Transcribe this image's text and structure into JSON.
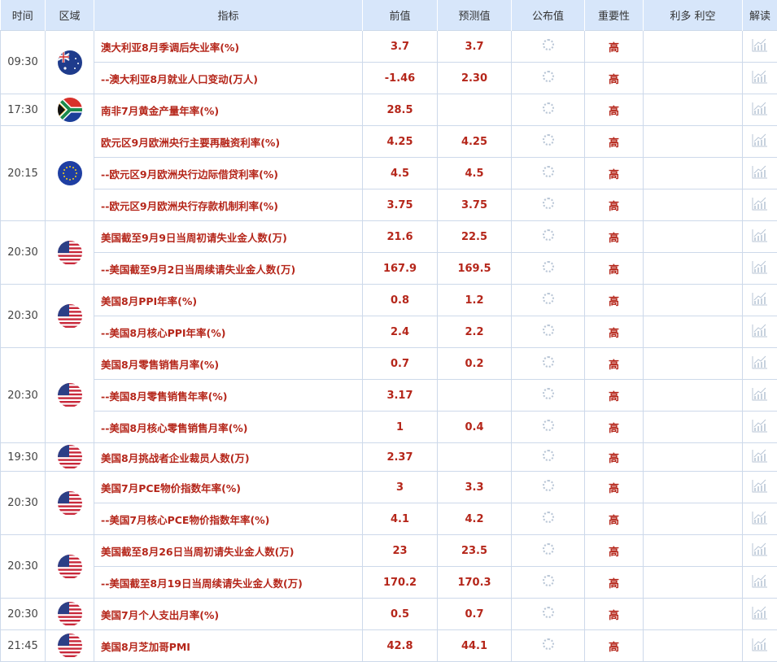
{
  "header": [
    "时间",
    "区域",
    "指标",
    "前值",
    "预测值",
    "公布值",
    "重要性",
    "利多 利空",
    "解读"
  ],
  "colors": {
    "header_bg": "#d7e6fa",
    "text_red": "#b5261a",
    "border": "#cdd9ea"
  },
  "groups": [
    {
      "time": "09:30",
      "flag": "australia",
      "rows": [
        {
          "indicator": "澳大利亚8月季调后失业率(%)",
          "prev": "3.7",
          "forecast": "3.7",
          "actual": "",
          "importance": "高"
        },
        {
          "indicator": "--澳大利亚8月就业人口变动(万人)",
          "prev": "-1.46",
          "forecast": "2.30",
          "actual": "",
          "importance": "高"
        }
      ]
    },
    {
      "time": "17:30",
      "flag": "south-africa",
      "rows": [
        {
          "indicator": "南非7月黄金产量年率(%)",
          "prev": "28.5",
          "forecast": "",
          "actual": "",
          "importance": "高"
        }
      ]
    },
    {
      "time": "20:15",
      "flag": "eurozone",
      "rows": [
        {
          "indicator": "欧元区9月欧洲央行主要再融资利率(%)",
          "prev": "4.25",
          "forecast": "4.25",
          "actual": "",
          "importance": "高"
        },
        {
          "indicator": "--欧元区9月欧洲央行边际借贷利率(%)",
          "prev": "4.5",
          "forecast": "4.5",
          "actual": "",
          "importance": "高"
        },
        {
          "indicator": "--欧元区9月欧洲央行存款机制利率(%)",
          "prev": "3.75",
          "forecast": "3.75",
          "actual": "",
          "importance": "高"
        }
      ]
    },
    {
      "time": "20:30",
      "flag": "usa",
      "rows": [
        {
          "indicator": "美国截至9月9日当周初请失业金人数(万)",
          "prev": "21.6",
          "forecast": "22.5",
          "actual": "",
          "importance": "高"
        },
        {
          "indicator": "--美国截至9月2日当周续请失业金人数(万)",
          "prev": "167.9",
          "forecast": "169.5",
          "actual": "",
          "importance": "高"
        }
      ]
    },
    {
      "time": "20:30",
      "flag": "usa",
      "rows": [
        {
          "indicator": "美国8月PPI年率(%)",
          "prev": "0.8",
          "forecast": "1.2",
          "actual": "",
          "importance": "高"
        },
        {
          "indicator": "--美国8月核心PPI年率(%)",
          "prev": "2.4",
          "forecast": "2.2",
          "actual": "",
          "importance": "高"
        }
      ]
    },
    {
      "time": "20:30",
      "flag": "usa",
      "rows": [
        {
          "indicator": "美国8月零售销售月率(%)",
          "prev": "0.7",
          "forecast": "0.2",
          "actual": "",
          "importance": "高"
        },
        {
          "indicator": "--美国8月零售销售年率(%)",
          "prev": "3.17",
          "forecast": "",
          "actual": "",
          "importance": "高"
        },
        {
          "indicator": "--美国8月核心零售销售月率(%)",
          "prev": "1",
          "forecast": "0.4",
          "actual": "",
          "importance": "高"
        }
      ]
    },
    {
      "time": "19:30",
      "flag": "usa",
      "rows": [
        {
          "indicator": "美国8月挑战者企业裁员人数(万)",
          "prev": "2.37",
          "forecast": "",
          "actual": "",
          "importance": "高"
        }
      ]
    },
    {
      "time": "20:30",
      "flag": "usa",
      "rows": [
        {
          "indicator": "美国7月PCE物价指数年率(%)",
          "prev": "3",
          "forecast": "3.3",
          "actual": "",
          "importance": "高"
        },
        {
          "indicator": "--美国7月核心PCE物价指数年率(%)",
          "prev": "4.1",
          "forecast": "4.2",
          "actual": "",
          "importance": "高"
        }
      ]
    },
    {
      "time": "20:30",
      "flag": "usa",
      "rows": [
        {
          "indicator": "美国截至8月26日当周初请失业金人数(万)",
          "prev": "23",
          "forecast": "23.5",
          "actual": "",
          "importance": "高"
        },
        {
          "indicator": "--美国截至8月19日当周续请失业金人数(万)",
          "prev": "170.2",
          "forecast": "170.3",
          "actual": "",
          "importance": "高"
        }
      ]
    },
    {
      "time": "20:30",
      "flag": "usa",
      "rows": [
        {
          "indicator": "美国7月个人支出月率(%)",
          "prev": "0.5",
          "forecast": "0.7",
          "actual": "",
          "importance": "高"
        }
      ]
    },
    {
      "time": "21:45",
      "flag": "usa",
      "rows": [
        {
          "indicator": "美国8月芝加哥PMI",
          "prev": "42.8",
          "forecast": "44.1",
          "actual": "",
          "importance": "高"
        }
      ]
    }
  ]
}
